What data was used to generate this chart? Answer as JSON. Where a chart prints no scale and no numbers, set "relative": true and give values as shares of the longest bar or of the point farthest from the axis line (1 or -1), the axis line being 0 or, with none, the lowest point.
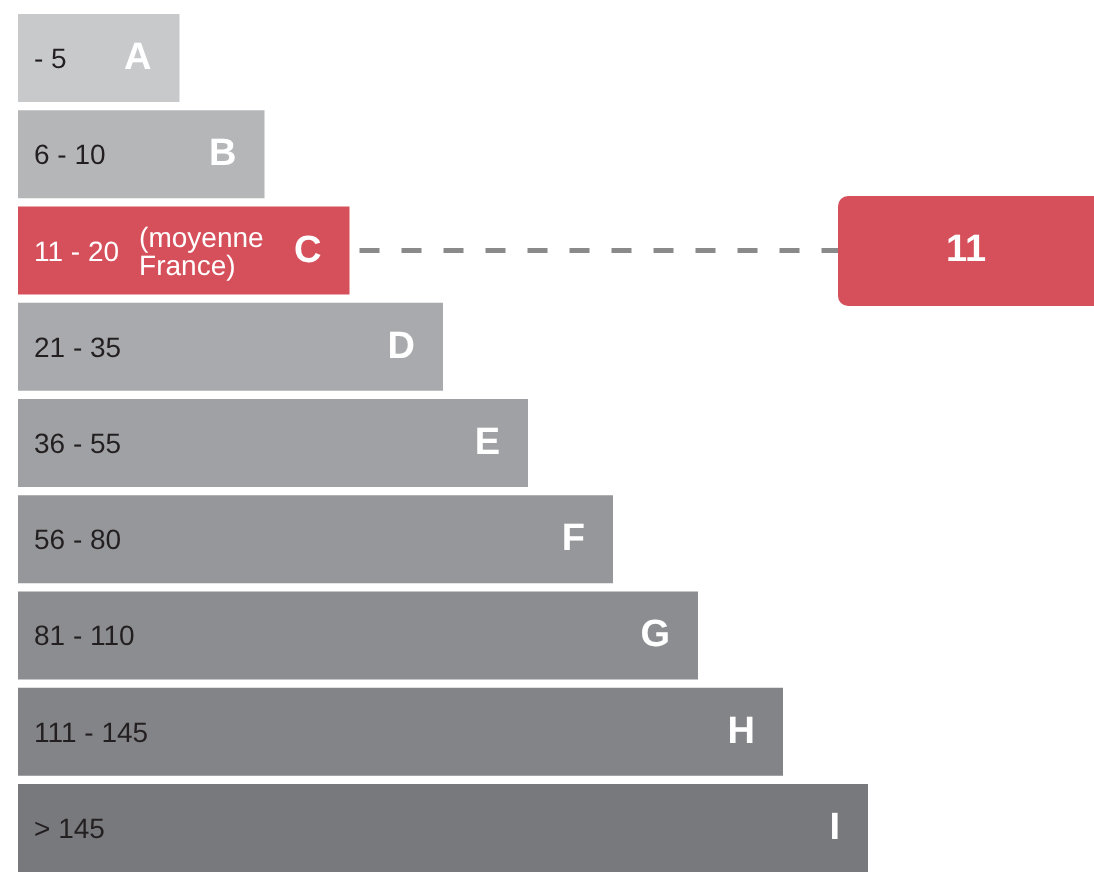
{
  "chart_data": {
    "type": "bar",
    "orientation": "horizontal",
    "relative": true,
    "tick_labels": "y",
    "categories": [
      "- 5",
      "6 - 10",
      "11 - 20",
      "21 - 35",
      "36 - 55",
      "56 - 80",
      "81 - 110",
      "111 - 145",
      "> 145"
    ],
    "values": [
      0.19,
      0.29,
      0.39,
      0.5,
      0.6,
      0.7,
      0.8,
      0.9,
      1
    ],
    "colors": [
      "#c8c9cb",
      "#b5b6b8",
      "#d6505b",
      "#a9aaad",
      "#a0a1a4",
      "#96979a",
      "#8c8d90",
      "#838488",
      "#78797d"
    ],
    "annotations": [
      {
        "text": "A",
        "x": 0.19,
        "y": "- 5"
      },
      {
        "text": "B",
        "x": 0.29,
        "y": "6 - 10"
      },
      {
        "text": "C",
        "x": 0.39,
        "y": "11 - 20"
      },
      "(moyenne France)",
      {
        "text": "D",
        "x": 0.5,
        "y": "21 - 35"
      },
      {
        "text": "E",
        "x": 0.6,
        "y": "36 - 55"
      },
      {
        "text": "F",
        "x": 0.7,
        "y": "56 - 80"
      },
      {
        "text": "G",
        "x": 0.8,
        "y": "81 - 110"
      },
      {
        "text": "H",
        "x": 0.9,
        "y": "111 - 145"
      },
      {
        "text": "I",
        "x": 1,
        "y": "> 145"
      }
    ],
    "ref_lines": [
      {
        "axis": "y",
        "value": "11 - 20",
        "label": "11",
        "color": "#8a8a8a",
        "line_style": "dashed"
      }
    ]
  }
}
